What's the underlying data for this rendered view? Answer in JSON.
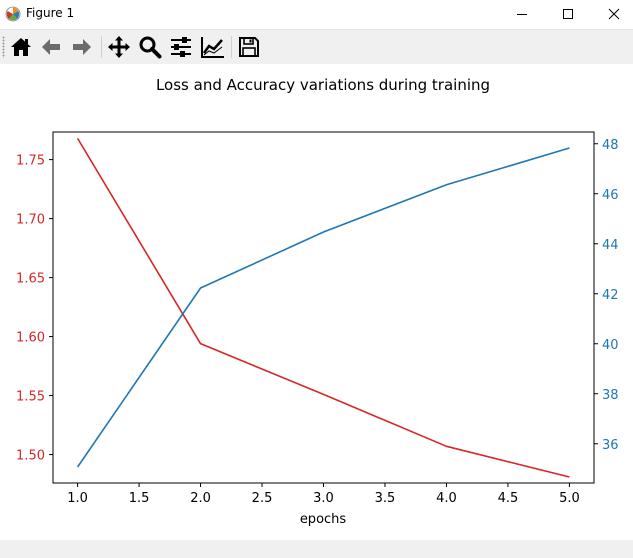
{
  "window": {
    "title": "Figure 1",
    "icon": "matplotlib-logo-icon",
    "controls": [
      "minimize-icon",
      "maximize-icon",
      "close-icon"
    ]
  },
  "toolbar": {
    "buttons": [
      {
        "name": "home-button",
        "icon": "home-icon",
        "tooltip": "Reset original view"
      },
      {
        "name": "back-button",
        "icon": "arrow-left-icon",
        "tooltip": "Back to previous view"
      },
      {
        "name": "forward-button",
        "icon": "arrow-right-icon",
        "tooltip": "Forward to next view"
      },
      {
        "name": "pan-button",
        "icon": "move-icon",
        "tooltip": "Pan axes"
      },
      {
        "name": "zoom-button",
        "icon": "magnifier-icon",
        "tooltip": "Zoom to rectangle"
      },
      {
        "name": "subplots-button",
        "icon": "sliders-icon",
        "tooltip": "Configure subplots"
      },
      {
        "name": "edit-axis-button",
        "icon": "line-chart-icon",
        "tooltip": "Edit axis"
      },
      {
        "name": "save-button",
        "icon": "floppy-disk-icon",
        "tooltip": "Save the figure"
      }
    ]
  },
  "chart_data": {
    "type": "line",
    "title": "Loss and Accuracy variations during training",
    "xlabel": "epochs",
    "x": [
      1.0,
      2.0,
      3.0,
      4.0,
      5.0
    ],
    "xlim": [
      0.8,
      5.2
    ],
    "xticks": [
      "1.0",
      "1.5",
      "2.0",
      "2.5",
      "3.0",
      "3.5",
      "4.0",
      "4.5",
      "5.0"
    ],
    "xtick_values": [
      1.0,
      1.5,
      2.0,
      2.5,
      3.0,
      3.5,
      4.0,
      4.5,
      5.0
    ],
    "y_left": {
      "ylim": [
        1.4759,
        1.7734
      ],
      "ticks": [
        "1.50",
        "1.55",
        "1.60",
        "1.65",
        "1.70",
        "1.75"
      ],
      "tick_values": [
        1.5,
        1.55,
        1.6,
        1.65,
        1.7,
        1.75
      ],
      "color": "#d62728"
    },
    "y_right": {
      "ylim": [
        34.43,
        48.47
      ],
      "ticks": [
        "36",
        "38",
        "40",
        "42",
        "44",
        "46",
        "48"
      ],
      "tick_values": [
        36,
        38,
        40,
        42,
        44,
        46,
        48
      ],
      "color": "#1f77b4"
    },
    "series": [
      {
        "axis": "left",
        "color": "#d62728",
        "values": [
          1.768,
          1.594,
          1.551,
          1.507,
          1.481
        ]
      },
      {
        "axis": "right",
        "color": "#1f77b4",
        "values": [
          35.07,
          42.23,
          44.47,
          46.36,
          47.83
        ]
      }
    ],
    "grid": false,
    "legend": "none"
  }
}
